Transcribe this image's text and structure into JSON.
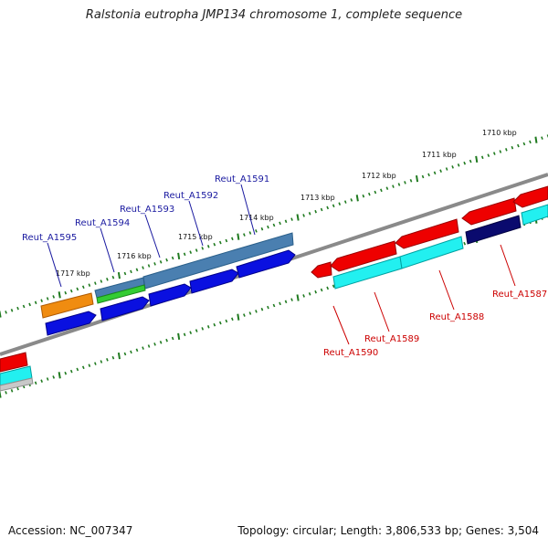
{
  "title": "Ralstonia eutropha JMP134 chromosome 1, complete sequence",
  "footer": {
    "accession": "Accession: NC_007347",
    "summary": "Topology: circular; Length: 3,806,533 bp; Genes: 3,504"
  },
  "colors": {
    "backbone": "#8a8a8a",
    "tick": "#1f7a1f",
    "label_forward": "#1a1aa0",
    "label_reverse": "#cc0000",
    "gene_blue": "#0a10e0",
    "gene_steel": "#4a7fb0",
    "gene_orange": "#f08c10",
    "gene_green": "#33cc33",
    "gene_red": "#ee0000",
    "gene_cyan": "#22f0f0",
    "gene_navy": "#0a0a6e",
    "gene_grey": "#c8c8c8"
  },
  "scale_labels": [
    "1710 kbp",
    "1711 kbp",
    "1712 kbp",
    "1713 kbp",
    "1714 kbp",
    "1715 kbp",
    "1716 kbp",
    "1717 kbp"
  ],
  "forward_labels": [
    "Reut_A1591",
    "Reut_A1592",
    "Reut_A1593",
    "Reut_A1594",
    "Reut_A1595"
  ],
  "reverse_labels": [
    "Reut_A1587",
    "Reut_A1588",
    "Reut_A1589",
    "Reut_A1590"
  ]
}
